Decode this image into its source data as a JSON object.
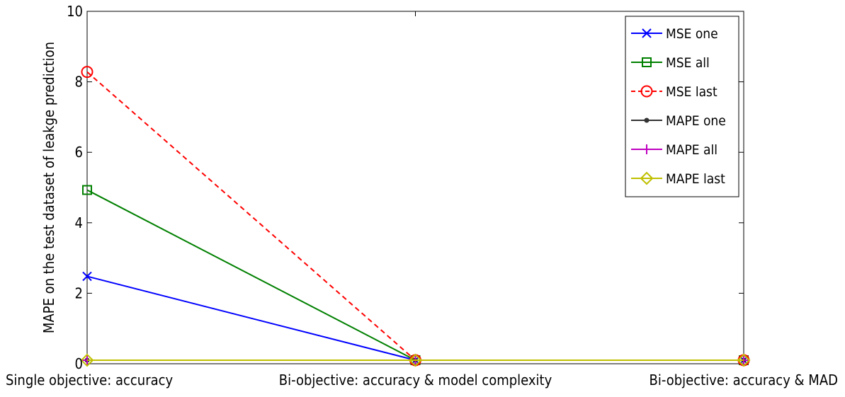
{
  "chart_data": {
    "type": "line",
    "title": "",
    "xlabel": "",
    "ylabel": "MAPE on the test dataset of leakge prediction",
    "categories": [
      "Single objective: accuracy",
      "Bi-objective: accuracy & model complexity",
      "Bi-objective: accuracy & MAD"
    ],
    "ylim": [
      0,
      10
    ],
    "yticks": [
      "0",
      "2",
      "4",
      "6",
      "8",
      "10"
    ],
    "grid": false,
    "legend_position": "top-right",
    "series": [
      {
        "name": "MSE one",
        "color": "#0000ff",
        "marker": "x",
        "dash": "solid",
        "values": [
          2.48,
          0.1,
          0.1
        ]
      },
      {
        "name": "MSE all",
        "color": "#008000",
        "marker": "square",
        "dash": "solid",
        "values": [
          4.93,
          0.1,
          0.1
        ]
      },
      {
        "name": "MSE last",
        "color": "#ff0000",
        "marker": "circle",
        "dash": "dashed",
        "values": [
          8.28,
          0.1,
          0.1
        ]
      },
      {
        "name": "MAPE one",
        "color": "#333333",
        "marker": "dot",
        "dash": "solid",
        "values": [
          0.1,
          0.1,
          0.1
        ]
      },
      {
        "name": "MAPE all",
        "color": "#bf00bf",
        "marker": "plus",
        "dash": "solid",
        "values": [
          0.1,
          0.1,
          0.1
        ]
      },
      {
        "name": "MAPE last",
        "color": "#bfbf00",
        "marker": "diamond",
        "dash": "solid",
        "values": [
          0.1,
          0.1,
          0.1
        ]
      }
    ]
  }
}
